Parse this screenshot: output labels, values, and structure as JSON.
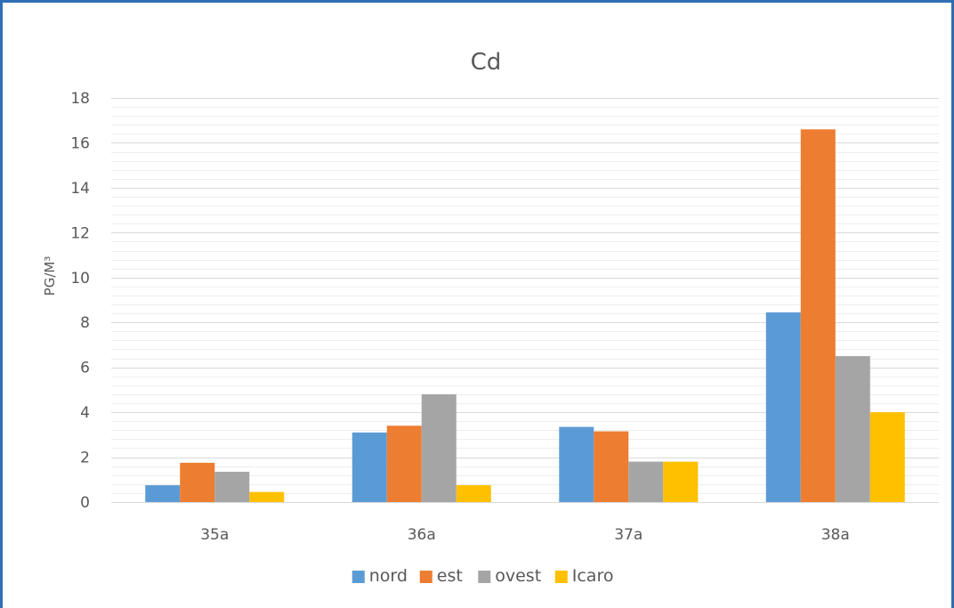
{
  "chart_data": {
    "type": "bar",
    "title": "Cd",
    "xlabel": "",
    "ylabel": "PG/M³",
    "categories": [
      "35a",
      "36a",
      "37a",
      "38a"
    ],
    "ylim": [
      0,
      18
    ],
    "yticks": [
      0,
      2,
      4,
      6,
      8,
      10,
      12,
      14,
      16,
      18
    ],
    "minor_gridlines": true,
    "legend_position": "bottom",
    "series": [
      {
        "name": "nord",
        "color": "#5b9bd5",
        "values": [
          0.75,
          3.1,
          3.35,
          8.45
        ]
      },
      {
        "name": "est",
        "color": "#ed7d31",
        "values": [
          1.75,
          3.4,
          3.15,
          16.6
        ]
      },
      {
        "name": "ovest",
        "color": "#a5a5a5",
        "values": [
          1.35,
          4.8,
          1.8,
          6.5
        ]
      },
      {
        "name": "Icaro",
        "color": "#ffc000",
        "values": [
          0.45,
          0.75,
          1.8,
          4.0
        ]
      }
    ]
  }
}
